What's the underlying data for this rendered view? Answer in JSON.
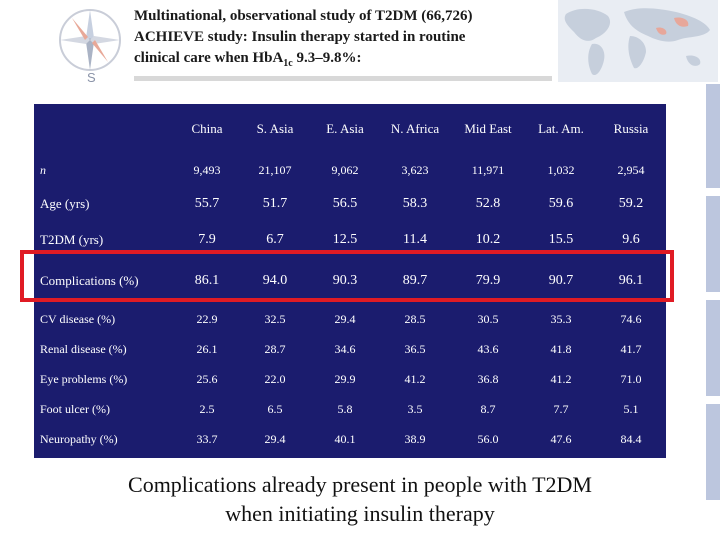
{
  "header": {
    "title_line1": "Multinational, observational study of T2DM (66,726)",
    "title_line2": "ACHIEVE study: Insulin therapy started in routine",
    "title_line3_pre": "clinical care when HbA",
    "title_line3_sub": "1c",
    "title_line3_post": " 9.3–9.8%:"
  },
  "table": {
    "columns": [
      "China",
      "S. Asia",
      "E. Asia",
      "N. Africa",
      "Mid East",
      "Lat. Am.",
      "Russia"
    ],
    "rows": [
      {
        "label": "n",
        "values": [
          "9,493",
          "21,107",
          "9,062",
          "3,623",
          "11,971",
          "1,032",
          "2,954"
        ]
      },
      {
        "label": "Age (yrs)",
        "values": [
          "55.7",
          "51.7",
          "56.5",
          "58.3",
          "52.8",
          "59.6",
          "59.2"
        ]
      },
      {
        "label": "T2DM (yrs)",
        "values": [
          "7.9",
          "6.7",
          "12.5",
          "11.4",
          "10.2",
          "15.5",
          "9.6"
        ]
      },
      {
        "label": "Complications (%)",
        "values": [
          "86.1",
          "94.0",
          "90.3",
          "89.7",
          "79.9",
          "90.7",
          "96.1"
        ]
      },
      {
        "label": "CV disease (%)",
        "values": [
          "22.9",
          "32.5",
          "29.4",
          "28.5",
          "30.5",
          "35.3",
          "74.6"
        ]
      },
      {
        "label": "Renal disease (%)",
        "values": [
          "26.1",
          "28.7",
          "34.6",
          "36.5",
          "43.6",
          "41.8",
          "41.7"
        ]
      },
      {
        "label": "Eye problems (%)",
        "values": [
          "25.6",
          "22.0",
          "29.9",
          "41.2",
          "36.8",
          "41.2",
          "71.0"
        ]
      },
      {
        "label": "Foot ulcer (%)",
        "values": [
          "2.5",
          "6.5",
          "5.8",
          "3.5",
          "8.7",
          "7.7",
          "5.1"
        ]
      },
      {
        "label": "Neuropathy (%)",
        "values": [
          "33.7",
          "29.4",
          "40.1",
          "38.9",
          "56.0",
          "47.6",
          "84.4"
        ]
      }
    ]
  },
  "caption": {
    "line1": "Complications already present in people with T2DM",
    "line2": "when initiating insulin therapy"
  },
  "compass_letter": "S",
  "colors": {
    "table_bg": "#1b1c6e",
    "highlight": "#e01b24"
  }
}
